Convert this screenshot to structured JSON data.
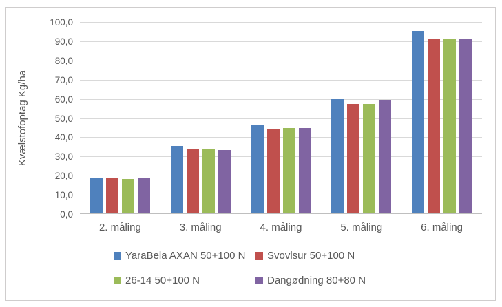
{
  "chart_data": {
    "type": "bar",
    "title": "",
    "xlabel": "",
    "ylabel": "Kvælstofoptag Kg/ha",
    "categories": [
      "2. måling",
      "3. måling",
      "4. måling",
      "5. måling",
      "6. måling"
    ],
    "series": [
      {
        "name": "YaraBela AXAN 50+100 N",
        "color": "#4F81BD",
        "values": [
          18.5,
          35.0,
          46.0,
          59.5,
          95.0
        ]
      },
      {
        "name": "Svovlsur 50+100 N",
        "color": "#C0504D",
        "values": [
          18.5,
          33.5,
          44.0,
          57.0,
          91.0
        ]
      },
      {
        "name": "26-14 50+100 N",
        "color": "#9BBB59",
        "values": [
          18.0,
          33.5,
          44.5,
          57.0,
          91.0
        ]
      },
      {
        "name": "Dangødning 80+80 N",
        "color": "#8064A2",
        "values": [
          18.5,
          33.0,
          44.5,
          59.0,
          91.0
        ]
      }
    ],
    "ylim": [
      0,
      100
    ],
    "ytick_step": 10,
    "ytick_labels": [
      "0,0",
      "10,0",
      "20,0",
      "30,0",
      "40,0",
      "50,0",
      "60,0",
      "70,0",
      "80,0",
      "90,0",
      "100,0"
    ],
    "grid": true,
    "gridline_color": "#D9D9D9",
    "axis_line_color": "#BFBFBF",
    "text_color": "#595959",
    "legend_position": "bottom"
  }
}
